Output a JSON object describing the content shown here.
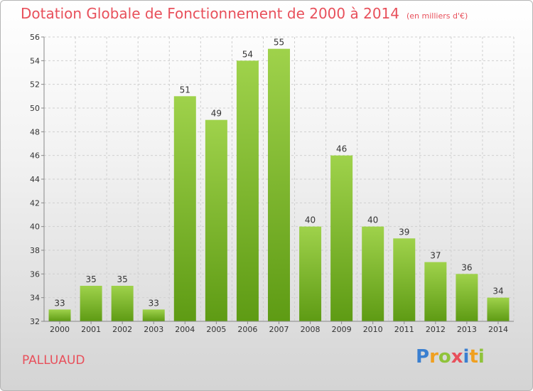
{
  "title": {
    "main": "Dotation Globale de Fonctionnement de 2000 à 2014",
    "unit": "(en milliers d'€)"
  },
  "commune": "PALLUAUD",
  "logo": {
    "text": "Proxiti",
    "letters": [
      {
        "char": "P",
        "color": "#3a7fd0"
      },
      {
        "char": "r",
        "color": "#f0a020"
      },
      {
        "char": "o",
        "color": "#8fc33a"
      },
      {
        "char": "x",
        "color": "#e8505b"
      },
      {
        "char": "i",
        "color": "#3a7fd0"
      },
      {
        "char": "t",
        "color": "#f0a020"
      },
      {
        "char": "i",
        "color": "#8fc33a"
      }
    ]
  },
  "colors": {
    "title": "#e8505b",
    "bar_top": "#9fd24b",
    "bar_bottom": "#5e9b14",
    "grid": "#cfcfcf",
    "axis_text": "#333333"
  },
  "chart_data": {
    "type": "bar",
    "categories": [
      "2000",
      "2001",
      "2002",
      "2003",
      "2004",
      "2005",
      "2006",
      "2007",
      "2008",
      "2009",
      "2010",
      "2011",
      "2012",
      "2013",
      "2014"
    ],
    "values": [
      33,
      35,
      35,
      33,
      51,
      49,
      54,
      55,
      40,
      46,
      40,
      39,
      37,
      36,
      34
    ],
    "title": "Dotation Globale de Fonctionnement de 2000 à 2014",
    "subtitle": "(en milliers d'€)",
    "xlabel": "",
    "ylabel": "",
    "ylim": [
      32,
      56
    ],
    "yticks": [
      32,
      34,
      36,
      38,
      40,
      42,
      44,
      46,
      48,
      50,
      52,
      54,
      56
    ],
    "grid": true
  }
}
